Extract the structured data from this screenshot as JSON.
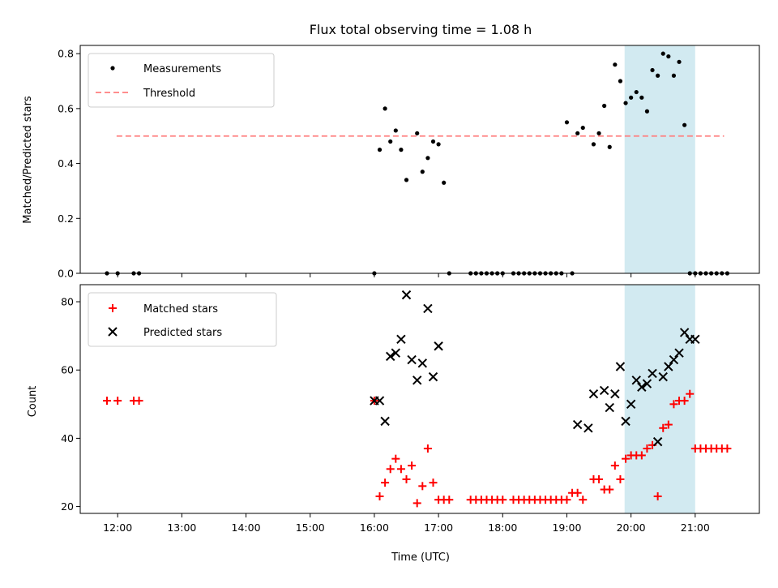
{
  "chart_data": [
    {
      "type": "scatter",
      "title": "Flux total observing time = 1.08 h",
      "xlabel": "",
      "ylabel": "Matched/Predicted stars",
      "ylim": [
        0,
        0.83
      ],
      "yticks": [
        "0.0",
        "0.2",
        "0.4",
        "0.6",
        "0.8"
      ],
      "shaded_region": {
        "x_start": "19:54",
        "x_end": "21:00",
        "color": "#add8e6"
      },
      "threshold": {
        "name": "Threshold",
        "value": 0.5,
        "x_start": "11:59",
        "x_end": "21:27",
        "color": "#ff7f7f"
      },
      "legend": {
        "location": "upper left",
        "entries": [
          "Measurements",
          "Threshold"
        ]
      },
      "series": [
        {
          "name": "Measurements",
          "marker": "dot",
          "color": "#000000",
          "x": [
            "11:50",
            "12:00",
            "12:15",
            "12:20",
            "16:00",
            "16:05",
            "16:10",
            "16:15",
            "16:20",
            "16:25",
            "16:30",
            "16:40",
            "16:45",
            "16:50",
            "16:55",
            "17:00",
            "17:05",
            "17:10",
            "17:30",
            "17:35",
            "17:40",
            "17:45",
            "17:50",
            "17:55",
            "18:00",
            "18:10",
            "18:15",
            "18:20",
            "18:25",
            "18:30",
            "18:35",
            "18:40",
            "18:45",
            "18:50",
            "18:55",
            "19:00",
            "19:05",
            "19:10",
            "19:15",
            "19:25",
            "19:30",
            "19:35",
            "19:40",
            "19:45",
            "19:50",
            "19:55",
            "20:00",
            "20:05",
            "20:10",
            "20:15",
            "20:20",
            "20:25",
            "20:30",
            "20:35",
            "20:40",
            "20:45",
            "20:50",
            "20:55",
            "21:00",
            "21:05",
            "21:10",
            "21:15",
            "21:20",
            "21:25",
            "21:30"
          ],
          "y": [
            0,
            0,
            0,
            0,
            0,
            0.45,
            0.6,
            0.48,
            0.52,
            0.45,
            0.34,
            0.51,
            0.37,
            0.42,
            0.48,
            0.47,
            0.33,
            0,
            0,
            0,
            0,
            0,
            0,
            0,
            0,
            0,
            0,
            0,
            0,
            0,
            0,
            0,
            0,
            0,
            0,
            0.55,
            0,
            0.51,
            0.53,
            0.47,
            0.51,
            0.61,
            0.46,
            0.76,
            0.7,
            0.62,
            0.64,
            0.66,
            0.64,
            0.59,
            0.74,
            0.72,
            0.8,
            0.79,
            0.72,
            0.77,
            0.54,
            0,
            0,
            0,
            0,
            0,
            0,
            0,
            0
          ]
        }
      ]
    },
    {
      "type": "scatter",
      "title": "",
      "xlabel": "Time (UTC)",
      "ylabel": "Count",
      "ylim": [
        18,
        85
      ],
      "yticks": [
        "20",
        "40",
        "60",
        "80"
      ],
      "xticks": [
        "12:00",
        "13:00",
        "14:00",
        "15:00",
        "16:00",
        "17:00",
        "18:00",
        "19:00",
        "20:00",
        "21:00"
      ],
      "xlim": [
        "11:25",
        "22:00"
      ],
      "shaded_region": {
        "x_start": "19:54",
        "x_end": "21:00",
        "color": "#add8e6"
      },
      "legend": {
        "location": "upper left",
        "entries": [
          "Matched stars",
          "Predicted stars"
        ]
      },
      "series": [
        {
          "name": "Matched stars",
          "marker": "plus",
          "color": "#ff0000",
          "x": [
            "11:50",
            "12:00",
            "12:15",
            "12:20",
            "16:00",
            "16:05",
            "16:10",
            "16:15",
            "16:20",
            "16:25",
            "16:30",
            "16:35",
            "16:40",
            "16:45",
            "16:50",
            "16:55",
            "17:00",
            "17:05",
            "17:10",
            "17:30",
            "17:35",
            "17:40",
            "17:45",
            "17:50",
            "17:55",
            "18:00",
            "18:10",
            "18:15",
            "18:20",
            "18:25",
            "18:30",
            "18:35",
            "18:40",
            "18:45",
            "18:50",
            "18:55",
            "19:00",
            "19:05",
            "19:10",
            "19:15",
            "19:25",
            "19:30",
            "19:35",
            "19:40",
            "19:45",
            "19:50",
            "19:55",
            "20:00",
            "20:05",
            "20:10",
            "20:15",
            "20:20",
            "20:25",
            "20:30",
            "20:35",
            "20:40",
            "20:45",
            "20:50",
            "20:55",
            "21:00",
            "21:05",
            "21:10",
            "21:15",
            "21:20",
            "21:25",
            "21:30"
          ],
          "y": [
            51,
            51,
            51,
            51,
            51,
            23,
            27,
            31,
            34,
            31,
            28,
            32,
            21,
            26,
            37,
            27,
            22,
            22,
            22,
            22,
            22,
            22,
            22,
            22,
            22,
            22,
            22,
            22,
            22,
            22,
            22,
            22,
            22,
            22,
            22,
            22,
            22,
            24,
            24,
            22,
            28,
            28,
            25,
            25,
            32,
            28,
            34,
            35,
            35,
            35,
            37,
            38,
            23,
            43,
            44,
            50,
            51,
            51,
            53,
            37,
            37,
            37,
            37,
            37,
            37,
            37
          ]
        },
        {
          "name": "Predicted stars",
          "marker": "x",
          "color": "#000000",
          "x": [
            "16:00",
            "16:05",
            "16:10",
            "16:15",
            "16:20",
            "16:25",
            "16:30",
            "16:35",
            "16:40",
            "16:45",
            "16:50",
            "16:55",
            "17:00",
            "19:10",
            "19:20",
            "19:25",
            "19:35",
            "19:40",
            "19:45",
            "19:50",
            "19:55",
            "20:00",
            "20:05",
            "20:10",
            "20:15",
            "20:20",
            "20:25",
            "20:30",
            "20:35",
            "20:40",
            "20:45",
            "20:50",
            "20:55",
            "21:00"
          ],
          "y": [
            51,
            51,
            45,
            64,
            65,
            69,
            82,
            63,
            57,
            62,
            78,
            58,
            67,
            44,
            43,
            53,
            54,
            49,
            53,
            61,
            45,
            50,
            57,
            55,
            56,
            59,
            39,
            58,
            61,
            63,
            65,
            71,
            69,
            69
          ]
        }
      ]
    }
  ]
}
